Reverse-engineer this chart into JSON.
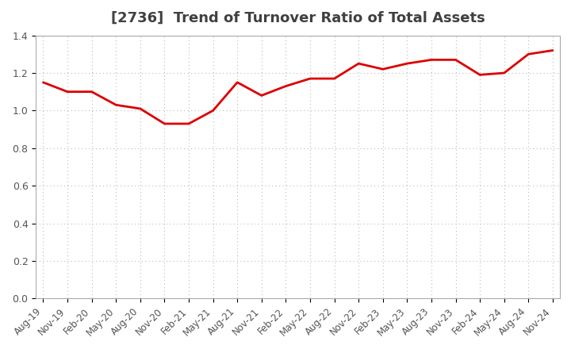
{
  "title": "[2736]  Trend of Turnover Ratio of Total Assets",
  "title_fontsize": 13,
  "title_color": "#404040",
  "ylim": [
    0.0,
    1.4
  ],
  "yticks": [
    0.0,
    0.2,
    0.4,
    0.6,
    0.8,
    1.0,
    1.2,
    1.4
  ],
  "line_color": "#dd0000",
  "background_color": "#ffffff",
  "grid_color": "#bbbbbb",
  "x_labels": [
    "Aug-19",
    "Nov-19",
    "Feb-20",
    "May-20",
    "Aug-20",
    "Nov-20",
    "Feb-21",
    "May-21",
    "Aug-21",
    "Nov-21",
    "Feb-22",
    "May-22",
    "Aug-22",
    "Nov-22",
    "Feb-23",
    "May-23",
    "Aug-23",
    "Nov-23",
    "Feb-24",
    "May-24",
    "Aug-24",
    "Nov-24"
  ],
  "values": [
    1.15,
    1.1,
    1.1,
    1.03,
    1.01,
    0.93,
    0.93,
    1.0,
    1.15,
    1.08,
    1.13,
    1.17,
    1.17,
    1.25,
    1.22,
    1.25,
    1.27,
    1.27,
    1.19,
    1.2,
    1.3,
    1.32
  ]
}
